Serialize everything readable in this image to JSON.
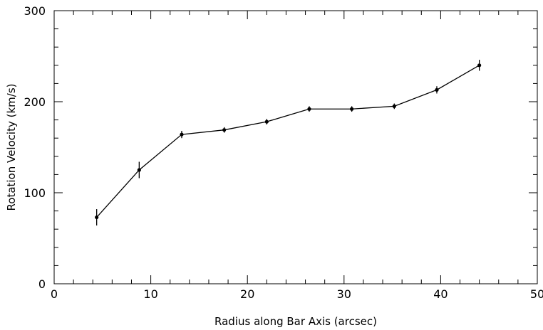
{
  "chart_data": {
    "type": "line",
    "xlabel": "Radius along Bar Axis (arcsec)",
    "ylabel": "Rotation Velocity (km/s)",
    "xlim": [
      0,
      50
    ],
    "ylim": [
      0,
      300
    ],
    "x_ticks": [
      0,
      10,
      20,
      30,
      40,
      50
    ],
    "y_ticks": [
      0,
      100,
      200,
      300
    ],
    "x_minor_step": 2,
    "y_minor_step": 20,
    "grid": false,
    "legend": "none",
    "color": "#000000",
    "series": [
      {
        "x": [
          4.4,
          8.8,
          13.2,
          17.6,
          22.0,
          26.4,
          30.8,
          35.2,
          39.6,
          44.0
        ],
        "y": [
          73,
          125,
          164,
          169,
          178,
          192,
          192,
          195,
          213,
          240
        ],
        "err": [
          9,
          9,
          4,
          3,
          3,
          3,
          3,
          3,
          4,
          6
        ]
      }
    ]
  }
}
